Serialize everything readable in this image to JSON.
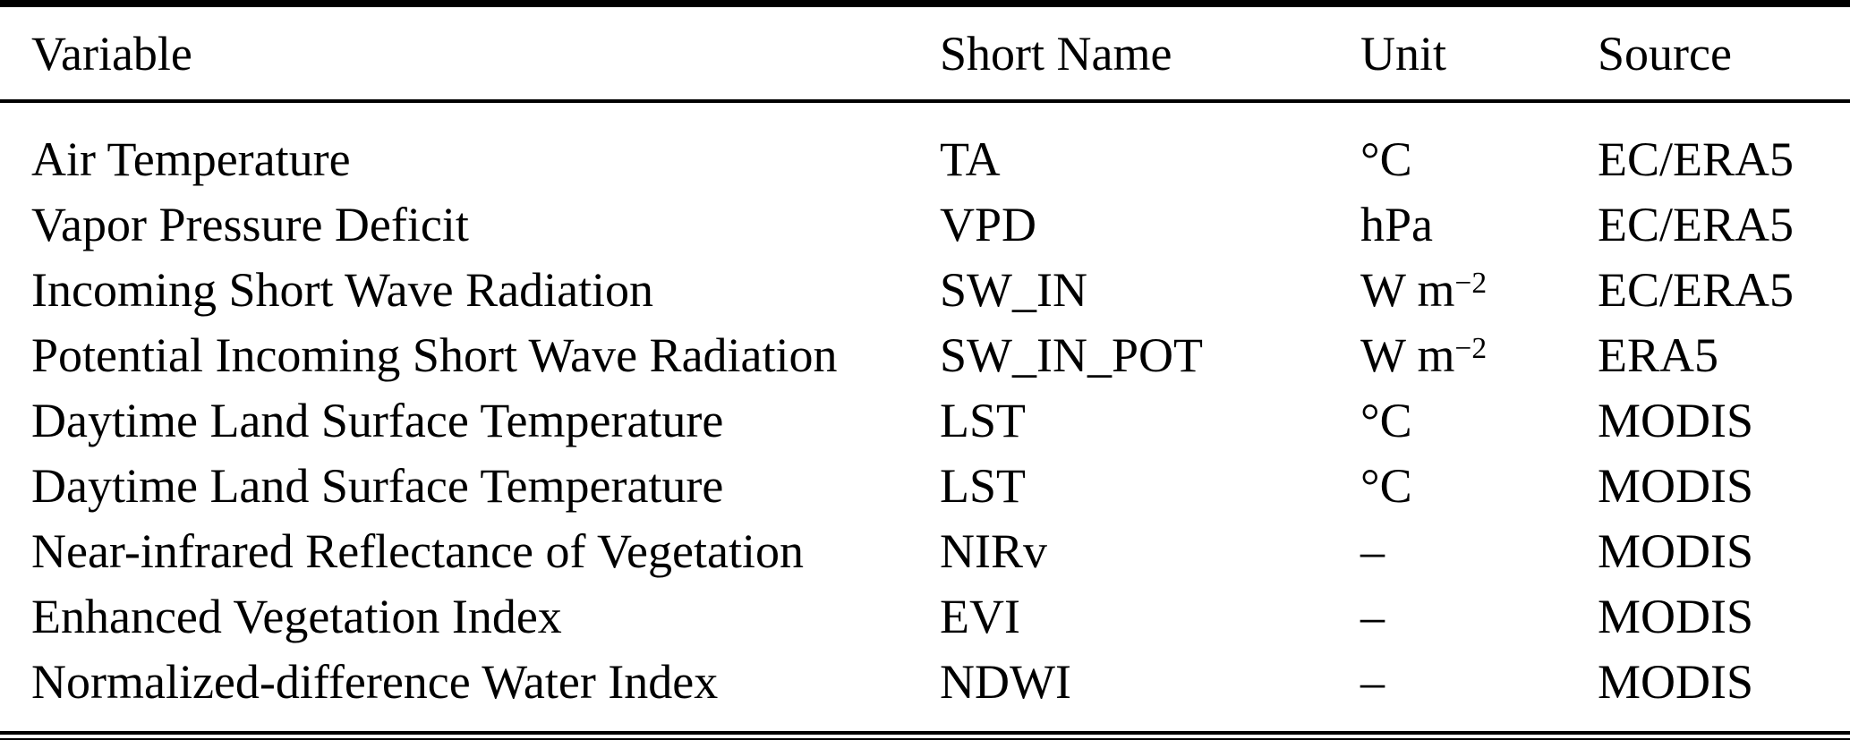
{
  "table": {
    "headers": [
      "Variable",
      "Short Name",
      "Unit",
      "Source"
    ],
    "rows": [
      {
        "variable": "Air Temperature",
        "short_name": "TA",
        "unit": "°C",
        "unit_sup": "",
        "source": "EC/ERA5"
      },
      {
        "variable": "Vapor Pressure Deficit",
        "short_name": "VPD",
        "unit": "hPa",
        "unit_sup": "",
        "source": "EC/ERA5"
      },
      {
        "variable": "Incoming Short Wave Radiation",
        "short_name": "SW_IN",
        "unit": "W m",
        "unit_sup": "−2",
        "source": "EC/ERA5"
      },
      {
        "variable": "Potential Incoming Short Wave Radiation",
        "short_name": "SW_IN_POT",
        "unit": "W m",
        "unit_sup": "−2",
        "source": "ERA5"
      },
      {
        "variable": "Daytime Land Surface Temperature",
        "short_name": "LST",
        "unit": "°C",
        "unit_sup": "",
        "source": "MODIS"
      },
      {
        "variable": "Daytime Land Surface Temperature",
        "short_name": "LST",
        "unit": "°C",
        "unit_sup": "",
        "source": "MODIS"
      },
      {
        "variable": "Near-infrared Reflectance of Vegetation",
        "short_name": "NIRv",
        "unit": "–",
        "unit_sup": "",
        "source": "MODIS"
      },
      {
        "variable": "Enhanced Vegetation Index",
        "short_name": "EVI",
        "unit": "–",
        "unit_sup": "",
        "source": "MODIS"
      },
      {
        "variable": "Normalized-difference Water Index",
        "short_name": "NDWI",
        "unit": "–",
        "unit_sup": "",
        "source": "MODIS"
      }
    ],
    "colors": {
      "text": "#000000",
      "background": "#ffffff",
      "rule": "#000000"
    }
  }
}
